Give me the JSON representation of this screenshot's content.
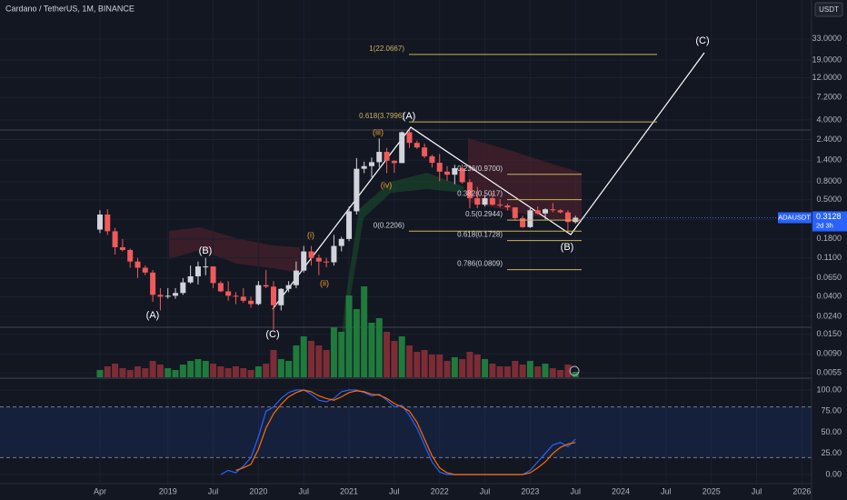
{
  "header": {
    "title": "Cardano / TetherUS, 1M, BINANCE",
    "currency": "USDT"
  },
  "price_tag": {
    "symbol": "ADAUSDT",
    "last": "0.3128",
    "countdown": "2d 3h"
  },
  "chart_data": [
    {
      "type": "candlestick",
      "log_scale": true,
      "up_color": "#d1d4dc",
      "down_color": "#f05a5a",
      "volume_up_color": "#1f7a3c",
      "volume_down_color": "#7c2c35",
      "x": [
        "2018-04",
        "2018-05",
        "2018-06",
        "2018-07",
        "2018-08",
        "2018-09",
        "2018-10",
        "2018-11",
        "2018-12",
        "2019-01",
        "2019-02",
        "2019-03",
        "2019-04",
        "2019-05",
        "2019-06",
        "2019-07",
        "2019-08",
        "2019-09",
        "2019-10",
        "2019-11",
        "2019-12",
        "2020-01",
        "2020-02",
        "2020-03",
        "2020-04",
        "2020-05",
        "2020-06",
        "2020-07",
        "2020-08",
        "2020-09",
        "2020-10",
        "2020-11",
        "2020-12",
        "2021-01",
        "2021-02",
        "2021-03",
        "2021-04",
        "2021-05",
        "2021-06",
        "2021-07",
        "2021-08",
        "2021-09",
        "2021-10",
        "2021-11",
        "2021-12",
        "2022-01",
        "2022-02",
        "2022-03",
        "2022-04",
        "2022-05",
        "2022-06",
        "2022-07",
        "2022-08",
        "2022-09",
        "2022-10",
        "2022-11",
        "2022-12",
        "2023-01",
        "2023-02",
        "2023-03",
        "2023-04",
        "2023-05",
        "2023-06",
        "2023-07"
      ],
      "open": [
        0.23,
        0.34,
        0.22,
        0.145,
        0.135,
        0.1,
        0.085,
        0.075,
        0.042,
        0.04,
        0.041,
        0.044,
        0.058,
        0.068,
        0.088,
        0.088,
        0.057,
        0.046,
        0.041,
        0.04,
        0.036,
        0.033,
        0.054,
        0.052,
        0.032,
        0.049,
        0.054,
        0.079,
        0.13,
        0.11,
        0.1,
        0.098,
        0.15,
        0.18,
        0.37,
        1.12,
        1.2,
        1.33,
        1.74,
        1.38,
        1.3,
        2.9,
        2.2,
        1.95,
        1.55,
        1.31,
        1.04,
        0.96,
        1.14,
        0.79,
        0.52,
        0.44,
        0.52,
        0.44,
        0.43,
        0.41,
        0.31,
        0.245,
        0.38,
        0.35,
        0.39,
        0.38,
        0.36,
        0.28
      ],
      "high": [
        0.38,
        0.39,
        0.24,
        0.18,
        0.14,
        0.11,
        0.09,
        0.08,
        0.05,
        0.05,
        0.05,
        0.065,
        0.09,
        0.1,
        0.11,
        0.088,
        0.06,
        0.06,
        0.045,
        0.05,
        0.04,
        0.06,
        0.08,
        0.06,
        0.05,
        0.06,
        0.1,
        0.15,
        0.15,
        0.12,
        0.11,
        0.2,
        0.19,
        0.42,
        1.48,
        1.35,
        1.5,
        2.47,
        1.93,
        1.4,
        2.97,
        3.1,
        2.33,
        2.17,
        1.62,
        1.65,
        1.2,
        1.24,
        1.26,
        0.85,
        0.7,
        0.56,
        0.6,
        0.51,
        0.45,
        0.41,
        0.33,
        0.4,
        0.42,
        0.4,
        0.46,
        0.39,
        0.38,
        0.33
      ],
      "low": [
        0.21,
        0.2,
        0.12,
        0.13,
        0.085,
        0.065,
        0.07,
        0.035,
        0.028,
        0.038,
        0.038,
        0.042,
        0.056,
        0.055,
        0.07,
        0.05,
        0.045,
        0.036,
        0.033,
        0.034,
        0.03,
        0.032,
        0.05,
        0.017,
        0.028,
        0.045,
        0.05,
        0.075,
        0.09,
        0.07,
        0.086,
        0.09,
        0.13,
        0.17,
        0.34,
        1.0,
        0.9,
        1.17,
        1.0,
        1.01,
        1.3,
        1.93,
        1.88,
        1.48,
        1.16,
        0.81,
        0.82,
        0.75,
        0.76,
        0.4,
        0.4,
        0.42,
        0.43,
        0.41,
        0.38,
        0.29,
        0.24,
        0.24,
        0.34,
        0.3,
        0.36,
        0.35,
        0.22,
        0.27
      ],
      "close": [
        0.34,
        0.22,
        0.145,
        0.135,
        0.1,
        0.085,
        0.075,
        0.042,
        0.04,
        0.041,
        0.044,
        0.058,
        0.068,
        0.088,
        0.088,
        0.057,
        0.046,
        0.041,
        0.04,
        0.036,
        0.033,
        0.054,
        0.052,
        0.032,
        0.049,
        0.054,
        0.079,
        0.13,
        0.11,
        0.1,
        0.098,
        0.15,
        0.18,
        0.37,
        1.12,
        1.2,
        1.33,
        1.74,
        1.38,
        1.3,
        2.9,
        2.2,
        1.95,
        1.55,
        1.31,
        1.04,
        0.96,
        1.14,
        0.79,
        0.52,
        0.44,
        0.52,
        0.44,
        0.43,
        0.41,
        0.31,
        0.245,
        0.38,
        0.35,
        0.39,
        0.38,
        0.36,
        0.28,
        0.3128
      ],
      "volume": [
        8,
        12,
        15,
        10,
        8,
        12,
        10,
        18,
        14,
        10,
        8,
        14,
        18,
        20,
        18,
        15,
        12,
        10,
        12,
        10,
        8,
        12,
        15,
        30,
        20,
        18,
        35,
        45,
        40,
        35,
        30,
        55,
        50,
        90,
        75,
        100,
        60,
        65,
        50,
        40,
        45,
        35,
        28,
        30,
        25,
        25,
        18,
        22,
        20,
        28,
        25,
        20,
        15,
        12,
        12,
        18,
        14,
        18,
        12,
        15,
        10,
        8,
        14,
        6
      ],
      "xlim": [
        "2017-03",
        "2026-03"
      ],
      "xticks": [
        {
          "value": "2018-04",
          "label": "Apr"
        },
        {
          "value": "2019-01",
          "label": "2019"
        },
        {
          "value": "2019-07",
          "label": "Jul"
        },
        {
          "value": "2020-01",
          "label": "2020"
        },
        {
          "value": "2020-07",
          "label": "Jul"
        },
        {
          "value": "2021-01",
          "label": "2021"
        },
        {
          "value": "2021-07",
          "label": "Jul"
        },
        {
          "value": "2022-01",
          "label": "2022"
        },
        {
          "value": "2022-07",
          "label": "Jul"
        },
        {
          "value": "2023-01",
          "label": "2023"
        },
        {
          "value": "2023-07",
          "label": "Jul"
        },
        {
          "value": "2024-01",
          "label": "2024"
        },
        {
          "value": "2024-07",
          "label": "Jul"
        },
        {
          "value": "2025-01",
          "label": "2025"
        },
        {
          "value": "2025-07",
          "label": "Jul"
        },
        {
          "value": "2026-01",
          "label": "2026"
        }
      ],
      "ylim": [
        0.0049,
        91
      ],
      "yticks": [
        {
          "value": 33,
          "label": "33.0000"
        },
        {
          "value": 19,
          "label": "19.0000"
        },
        {
          "value": 12,
          "label": "12.0000"
        },
        {
          "value": 7.2,
          "label": "7.2000"
        },
        {
          "value": 4,
          "label": "4.0000"
        },
        {
          "value": 2.4,
          "label": "2.4000"
        },
        {
          "value": 1.4,
          "label": "1.4000"
        },
        {
          "value": 0.8,
          "label": "0.8000"
        },
        {
          "value": 0.5,
          "label": "0.5000"
        },
        {
          "value": 0.3,
          "label": "0.3000"
        },
        {
          "value": 0.18,
          "label": "0.1800"
        },
        {
          "value": 0.11,
          "label": "0.1100"
        },
        {
          "value": 0.065,
          "label": "0.0650"
        },
        {
          "value": 0.04,
          "label": "0.0400"
        },
        {
          "value": 0.024,
          "label": "0.0240"
        },
        {
          "value": 0.015,
          "label": "0.0150"
        },
        {
          "value": 0.009,
          "label": "0.0090"
        },
        {
          "value": 0.0055,
          "label": "0.0055"
        }
      ],
      "fib_levels": [
        {
          "label": "1(22.0667)",
          "value": 22.0667
        },
        {
          "label": "0.618(3.7996)",
          "value": 3.7996
        },
        {
          "label": "0.236(0.9700)",
          "value": 0.97
        },
        {
          "label": "0.382(0.5017)",
          "value": 0.5017
        },
        {
          "label": "0.5(0.2944)",
          "value": 0.2944
        },
        {
          "label": "0(0.2206)",
          "value": 0.2206
        },
        {
          "label": "0.618(0.1728)",
          "value": 0.1728
        },
        {
          "label": "0.786(0.0809)",
          "value": 0.0809
        }
      ],
      "fib_color": "#c8b45a",
      "annotations": [
        {
          "text": "(A)",
          "color": "#ffffff"
        },
        {
          "text": "(B)",
          "color": "#ffffff"
        },
        {
          "text": "(C)",
          "color": "#ffffff"
        },
        {
          "text": "(i)",
          "color": "#f0a030"
        },
        {
          "text": "(ii)",
          "color": "#f0a030"
        },
        {
          "text": "(iii)",
          "color": "#f0a030"
        },
        {
          "text": "(iv)",
          "color": "#f0a030"
        },
        {
          "text": "(A)",
          "color": "#ffffff"
        },
        {
          "text": "(B)",
          "color": "#ffffff"
        },
        {
          "text": "(C)",
          "color": "#ffffff"
        }
      ]
    },
    {
      "type": "line",
      "x": [
        "2018-04",
        "2018-05",
        "2018-06",
        "2018-07",
        "2018-08",
        "2018-09",
        "2018-10",
        "2018-11",
        "2018-12",
        "2019-01",
        "2019-02",
        "2019-03",
        "2019-04",
        "2019-05",
        "2019-06",
        "2019-07",
        "2019-08",
        "2019-09",
        "2019-10",
        "2019-11",
        "2019-12",
        "2020-01",
        "2020-02",
        "2020-03",
        "2020-04",
        "2020-05",
        "2020-06",
        "2020-07",
        "2020-08",
        "2020-09",
        "2020-10",
        "2020-11",
        "2020-12",
        "2021-01",
        "2021-02",
        "2021-03",
        "2021-04",
        "2021-05",
        "2021-06",
        "2021-07",
        "2021-08",
        "2021-09",
        "2021-10",
        "2021-11",
        "2021-12",
        "2022-01",
        "2022-02",
        "2022-03",
        "2022-04",
        "2022-05",
        "2022-06",
        "2022-07",
        "2022-08",
        "2022-09",
        "2022-10",
        "2022-11",
        "2022-12",
        "2023-01",
        "2023-02",
        "2023-03",
        "2023-04",
        "2023-05",
        "2023-06",
        "2023-07"
      ],
      "series": [
        {
          "color": "#2962ff",
          "values": [
            null,
            null,
            null,
            null,
            null,
            null,
            null,
            null,
            null,
            null,
            null,
            null,
            null,
            null,
            null,
            null,
            0,
            5,
            2,
            10,
            20,
            45,
            75,
            80,
            90,
            97,
            100,
            100,
            95,
            88,
            86,
            90,
            98,
            100,
            100,
            97,
            93,
            95,
            88,
            80,
            82,
            70,
            55,
            35,
            15,
            3,
            0,
            0,
            0,
            0,
            0,
            0,
            0,
            0,
            0,
            0,
            0,
            5,
            15,
            25,
            35,
            38,
            33,
            42
          ]
        },
        {
          "color": "#ff6d00",
          "values": [
            null,
            null,
            null,
            null,
            null,
            null,
            null,
            null,
            null,
            null,
            null,
            null,
            null,
            null,
            null,
            null,
            null,
            null,
            5,
            8,
            12,
            30,
            55,
            72,
            83,
            92,
            97,
            100,
            98,
            93,
            90,
            88,
            92,
            97,
            99,
            98,
            95,
            94,
            90,
            84,
            80,
            75,
            62,
            42,
            22,
            8,
            2,
            0,
            0,
            0,
            0,
            0,
            0,
            0,
            0,
            0,
            0,
            2,
            8,
            15,
            25,
            32,
            36,
            38
          ]
        }
      ],
      "xlim": [
        "2017-03",
        "2026-03"
      ],
      "ylim": [
        -8.6,
        109.7
      ],
      "yticks": [
        {
          "value": 100,
          "label": "100.00"
        },
        {
          "value": 75,
          "label": "75.00"
        },
        {
          "value": 50,
          "label": "50.00"
        },
        {
          "value": 25,
          "label": "25.00"
        },
        {
          "value": 0,
          "label": "0.00"
        }
      ],
      "bands": [
        20,
        80
      ],
      "band_color": "#2962ff"
    }
  ]
}
